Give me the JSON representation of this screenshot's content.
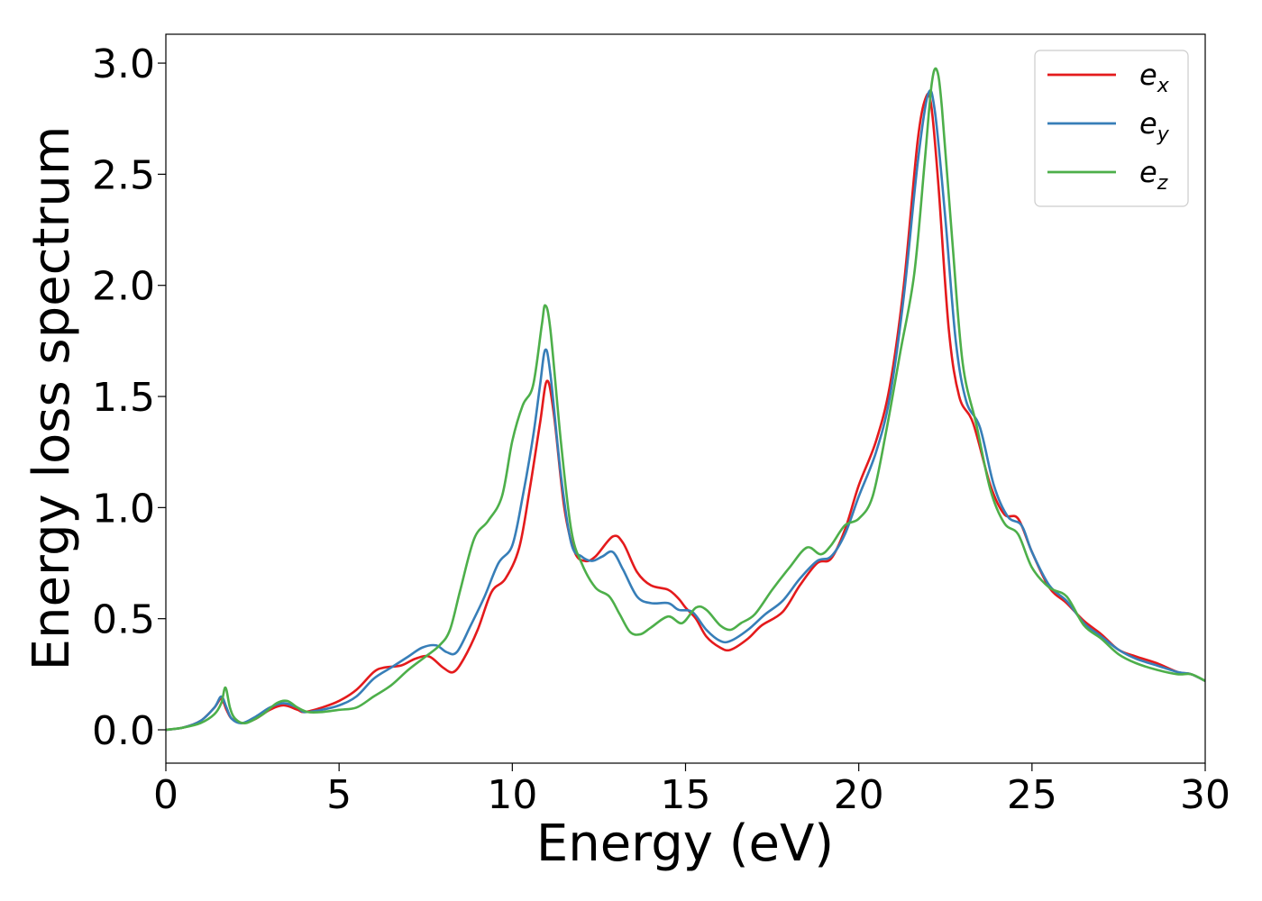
{
  "chart_data": {
    "type": "line",
    "xlabel": "Energy (eV)",
    "ylabel": "Energy loss spectrum",
    "xlim": [
      0,
      30
    ],
    "ylim": [
      -0.15,
      3.13
    ],
    "xticks": [
      0,
      5,
      10,
      15,
      20,
      25,
      30
    ],
    "xtick_labels": [
      "0",
      "5",
      "10",
      "15",
      "20",
      "25",
      "30"
    ],
    "yticks": [
      0.0,
      0.5,
      1.0,
      1.5,
      2.0,
      2.5,
      3.0
    ],
    "ytick_labels": [
      "0.0",
      "0.5",
      "1.0",
      "1.5",
      "2.0",
      "2.5",
      "3.0"
    ],
    "grid": false,
    "legend_position": "top-right",
    "series": [
      {
        "name": "e",
        "subscript": "x",
        "color": "#e41a1c",
        "points": [
          [
            0,
            0
          ],
          [
            0.5,
            0.01
          ],
          [
            1.0,
            0.04
          ],
          [
            1.4,
            0.1
          ],
          [
            1.6,
            0.14
          ],
          [
            1.75,
            0.09
          ],
          [
            1.9,
            0.05
          ],
          [
            2.2,
            0.03
          ],
          [
            2.6,
            0.05
          ],
          [
            3.0,
            0.09
          ],
          [
            3.4,
            0.11
          ],
          [
            3.8,
            0.09
          ],
          [
            4.0,
            0.08
          ],
          [
            4.5,
            0.1
          ],
          [
            5.0,
            0.13
          ],
          [
            5.5,
            0.18
          ],
          [
            6.0,
            0.26
          ],
          [
            6.3,
            0.28
          ],
          [
            6.8,
            0.29
          ],
          [
            7.2,
            0.32
          ],
          [
            7.6,
            0.33
          ],
          [
            8.0,
            0.28
          ],
          [
            8.3,
            0.26
          ],
          [
            8.6,
            0.32
          ],
          [
            9.0,
            0.45
          ],
          [
            9.4,
            0.62
          ],
          [
            9.8,
            0.68
          ],
          [
            10.2,
            0.82
          ],
          [
            10.5,
            1.08
          ],
          [
            10.8,
            1.38
          ],
          [
            11.0,
            1.57
          ],
          [
            11.2,
            1.42
          ],
          [
            11.5,
            1.0
          ],
          [
            11.8,
            0.8
          ],
          [
            12.1,
            0.76
          ],
          [
            12.4,
            0.78
          ],
          [
            12.9,
            0.87
          ],
          [
            13.2,
            0.84
          ],
          [
            13.6,
            0.71
          ],
          [
            14.0,
            0.65
          ],
          [
            14.5,
            0.63
          ],
          [
            14.8,
            0.59
          ],
          [
            15.0,
            0.55
          ],
          [
            15.3,
            0.5
          ],
          [
            15.6,
            0.42
          ],
          [
            16.0,
            0.37
          ],
          [
            16.3,
            0.36
          ],
          [
            16.8,
            0.41
          ],
          [
            17.2,
            0.47
          ],
          [
            17.8,
            0.53
          ],
          [
            18.3,
            0.65
          ],
          [
            18.8,
            0.75
          ],
          [
            19.2,
            0.77
          ],
          [
            19.6,
            0.9
          ],
          [
            20.0,
            1.1
          ],
          [
            20.5,
            1.3
          ],
          [
            20.9,
            1.55
          ],
          [
            21.3,
            2.0
          ],
          [
            21.7,
            2.65
          ],
          [
            21.95,
            2.85
          ],
          [
            22.1,
            2.8
          ],
          [
            22.3,
            2.45
          ],
          [
            22.6,
            1.8
          ],
          [
            22.9,
            1.5
          ],
          [
            23.3,
            1.38
          ],
          [
            23.8,
            1.1
          ],
          [
            24.2,
            0.97
          ],
          [
            24.6,
            0.95
          ],
          [
            25.0,
            0.8
          ],
          [
            25.5,
            0.64
          ],
          [
            26.0,
            0.57
          ],
          [
            26.5,
            0.49
          ],
          [
            27.0,
            0.43
          ],
          [
            27.5,
            0.36
          ],
          [
            28.0,
            0.33
          ],
          [
            28.6,
            0.3
          ],
          [
            29.2,
            0.26
          ],
          [
            29.6,
            0.25
          ],
          [
            30.0,
            0.22
          ]
        ]
      },
      {
        "name": "e",
        "subscript": "y",
        "color": "#377eb8",
        "points": [
          [
            0,
            0
          ],
          [
            0.5,
            0.01
          ],
          [
            1.0,
            0.04
          ],
          [
            1.4,
            0.1
          ],
          [
            1.6,
            0.15
          ],
          [
            1.75,
            0.1
          ],
          [
            1.9,
            0.05
          ],
          [
            2.2,
            0.03
          ],
          [
            2.6,
            0.06
          ],
          [
            3.0,
            0.1
          ],
          [
            3.4,
            0.12
          ],
          [
            3.8,
            0.1
          ],
          [
            4.0,
            0.08
          ],
          [
            4.5,
            0.09
          ],
          [
            5.0,
            0.11
          ],
          [
            5.5,
            0.15
          ],
          [
            6.0,
            0.23
          ],
          [
            6.5,
            0.28
          ],
          [
            7.0,
            0.33
          ],
          [
            7.4,
            0.37
          ],
          [
            7.8,
            0.38
          ],
          [
            8.1,
            0.35
          ],
          [
            8.4,
            0.35
          ],
          [
            8.8,
            0.47
          ],
          [
            9.2,
            0.6
          ],
          [
            9.6,
            0.75
          ],
          [
            10.0,
            0.83
          ],
          [
            10.3,
            1.05
          ],
          [
            10.6,
            1.32
          ],
          [
            10.8,
            1.55
          ],
          [
            10.95,
            1.71
          ],
          [
            11.1,
            1.6
          ],
          [
            11.4,
            1.15
          ],
          [
            11.7,
            0.84
          ],
          [
            12.0,
            0.78
          ],
          [
            12.3,
            0.76
          ],
          [
            12.6,
            0.78
          ],
          [
            12.9,
            0.8
          ],
          [
            13.2,
            0.72
          ],
          [
            13.6,
            0.6
          ],
          [
            14.0,
            0.57
          ],
          [
            14.5,
            0.57
          ],
          [
            14.8,
            0.54
          ],
          [
            15.2,
            0.53
          ],
          [
            15.6,
            0.45
          ],
          [
            16.0,
            0.4
          ],
          [
            16.3,
            0.4
          ],
          [
            16.8,
            0.45
          ],
          [
            17.3,
            0.52
          ],
          [
            17.8,
            0.58
          ],
          [
            18.3,
            0.68
          ],
          [
            18.8,
            0.76
          ],
          [
            19.2,
            0.78
          ],
          [
            19.6,
            0.88
          ],
          [
            20.0,
            1.05
          ],
          [
            20.5,
            1.25
          ],
          [
            20.9,
            1.5
          ],
          [
            21.3,
            1.95
          ],
          [
            21.7,
            2.55
          ],
          [
            22.0,
            2.86
          ],
          [
            22.2,
            2.78
          ],
          [
            22.5,
            2.3
          ],
          [
            22.8,
            1.75
          ],
          [
            23.1,
            1.48
          ],
          [
            23.5,
            1.36
          ],
          [
            23.9,
            1.1
          ],
          [
            24.3,
            0.96
          ],
          [
            24.7,
            0.92
          ],
          [
            25.0,
            0.8
          ],
          [
            25.5,
            0.65
          ],
          [
            26.0,
            0.58
          ],
          [
            26.5,
            0.48
          ],
          [
            27.0,
            0.42
          ],
          [
            27.5,
            0.36
          ],
          [
            28.0,
            0.32
          ],
          [
            28.6,
            0.29
          ],
          [
            29.2,
            0.26
          ],
          [
            29.6,
            0.25
          ],
          [
            30.0,
            0.22
          ]
        ]
      },
      {
        "name": "e",
        "subscript": "z",
        "color": "#4daf4a",
        "points": [
          [
            0,
            0
          ],
          [
            0.5,
            0.01
          ],
          [
            1.0,
            0.03
          ],
          [
            1.4,
            0.07
          ],
          [
            1.6,
            0.12
          ],
          [
            1.72,
            0.19
          ],
          [
            1.85,
            0.1
          ],
          [
            2.0,
            0.05
          ],
          [
            2.3,
            0.03
          ],
          [
            2.8,
            0.07
          ],
          [
            3.2,
            0.12
          ],
          [
            3.5,
            0.13
          ],
          [
            3.8,
            0.1
          ],
          [
            4.1,
            0.08
          ],
          [
            4.5,
            0.08
          ],
          [
            5.0,
            0.09
          ],
          [
            5.5,
            0.1
          ],
          [
            6.0,
            0.15
          ],
          [
            6.5,
            0.2
          ],
          [
            7.0,
            0.27
          ],
          [
            7.5,
            0.33
          ],
          [
            7.9,
            0.38
          ],
          [
            8.2,
            0.45
          ],
          [
            8.5,
            0.63
          ],
          [
            8.9,
            0.86
          ],
          [
            9.3,
            0.94
          ],
          [
            9.7,
            1.05
          ],
          [
            10.0,
            1.3
          ],
          [
            10.3,
            1.46
          ],
          [
            10.6,
            1.55
          ],
          [
            10.85,
            1.82
          ],
          [
            10.95,
            1.91
          ],
          [
            11.1,
            1.8
          ],
          [
            11.4,
            1.3
          ],
          [
            11.7,
            0.9
          ],
          [
            12.0,
            0.75
          ],
          [
            12.4,
            0.64
          ],
          [
            12.8,
            0.6
          ],
          [
            13.1,
            0.52
          ],
          [
            13.4,
            0.44
          ],
          [
            13.7,
            0.43
          ],
          [
            14.0,
            0.46
          ],
          [
            14.5,
            0.51
          ],
          [
            14.9,
            0.48
          ],
          [
            15.3,
            0.55
          ],
          [
            15.6,
            0.54
          ],
          [
            16.0,
            0.47
          ],
          [
            16.3,
            0.45
          ],
          [
            16.6,
            0.48
          ],
          [
            17.0,
            0.52
          ],
          [
            17.5,
            0.63
          ],
          [
            18.0,
            0.73
          ],
          [
            18.5,
            0.82
          ],
          [
            18.9,
            0.79
          ],
          [
            19.2,
            0.83
          ],
          [
            19.6,
            0.92
          ],
          [
            20.0,
            0.95
          ],
          [
            20.4,
            1.05
          ],
          [
            20.8,
            1.35
          ],
          [
            21.2,
            1.7
          ],
          [
            21.6,
            2.05
          ],
          [
            21.9,
            2.55
          ],
          [
            22.1,
            2.9
          ],
          [
            22.25,
            2.97
          ],
          [
            22.4,
            2.8
          ],
          [
            22.7,
            2.2
          ],
          [
            23.0,
            1.65
          ],
          [
            23.4,
            1.37
          ],
          [
            23.8,
            1.08
          ],
          [
            24.2,
            0.93
          ],
          [
            24.6,
            0.88
          ],
          [
            25.0,
            0.73
          ],
          [
            25.5,
            0.64
          ],
          [
            26.0,
            0.6
          ],
          [
            26.5,
            0.47
          ],
          [
            27.0,
            0.41
          ],
          [
            27.5,
            0.34
          ],
          [
            28.0,
            0.3
          ],
          [
            28.6,
            0.27
          ],
          [
            29.2,
            0.25
          ],
          [
            29.6,
            0.25
          ],
          [
            30.0,
            0.22
          ]
        ]
      }
    ]
  }
}
